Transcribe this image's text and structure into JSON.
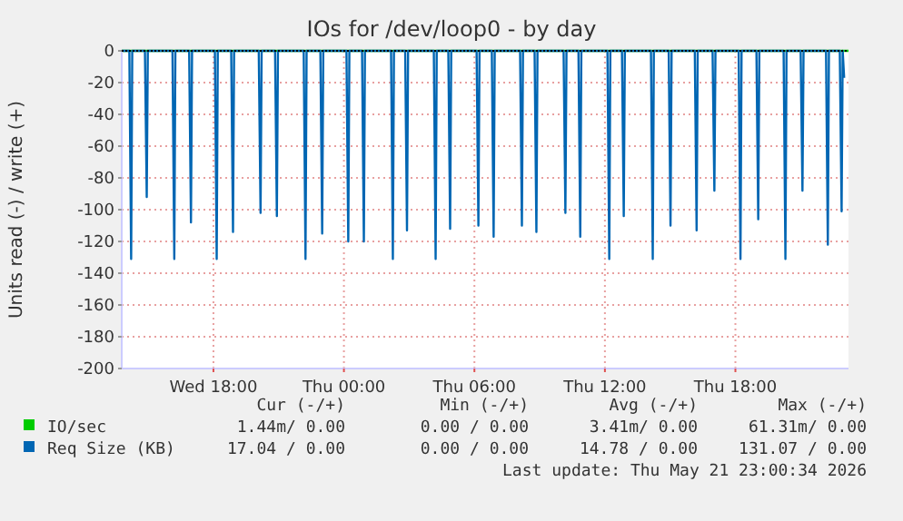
{
  "chart_data": {
    "type": "line",
    "title": "IOs for /dev/loop0 - by day",
    "ylabel": "Units read (-) / write (+)",
    "xlim": [
      "2026-05-20T13:47",
      "2026-05-21T23:12"
    ],
    "xticks": [
      {
        "value": "2026-05-20T18:00",
        "label": "Wed 18:00"
      },
      {
        "value": "2026-05-21T00:00",
        "label": "Thu 00:00"
      },
      {
        "value": "2026-05-21T06:00",
        "label": "Thu 06:00"
      },
      {
        "value": "2026-05-21T12:00",
        "label": "Thu 12:00"
      },
      {
        "value": "2026-05-21T18:00",
        "label": "Thu 18:00"
      }
    ],
    "ylim": [
      -200,
      0
    ],
    "yticks": [
      -200,
      -180,
      -160,
      -140,
      -120,
      -100,
      -80,
      -60,
      -40,
      -20,
      0
    ],
    "grid": true,
    "legend": "bottom left",
    "marker": "none",
    "line_style": "solid",
    "series": [
      {
        "name": "IO/sec",
        "color": "#00cc00",
        "x": [
          "2026-05-20T13:47",
          "2026-05-21T23:12"
        ],
        "values": [
          0,
          0
        ]
      },
      {
        "name": "Req Size (KB)",
        "color": "#0066b3",
        "x": [
          "2026-05-20T13:47",
          "2026-05-20T14:08",
          "2026-05-20T14:13",
          "2026-05-20T14:16",
          "2026-05-20T14:51",
          "2026-05-20T14:56",
          "2026-05-20T14:59",
          "2026-05-20T16:07",
          "2026-05-20T16:12",
          "2026-05-20T16:15",
          "2026-05-20T16:53",
          "2026-05-20T16:58",
          "2026-05-20T17:01",
          "2026-05-20T18:04",
          "2026-05-20T18:09",
          "2026-05-20T18:12",
          "2026-05-20T18:49",
          "2026-05-20T18:54",
          "2026-05-20T18:57",
          "2026-05-20T20:05",
          "2026-05-20T20:10",
          "2026-05-20T20:13",
          "2026-05-20T20:50",
          "2026-05-20T20:55",
          "2026-05-20T20:58",
          "2026-05-20T22:09",
          "2026-05-20T22:14",
          "2026-05-20T22:17",
          "2026-05-20T22:55",
          "2026-05-20T23:00",
          "2026-05-20T23:03",
          "2026-05-21T00:07",
          "2026-05-21T00:12",
          "2026-05-21T00:15",
          "2026-05-21T00:50",
          "2026-05-21T00:55",
          "2026-05-21T00:58",
          "2026-05-21T02:10",
          "2026-05-21T02:15",
          "2026-05-21T02:18",
          "2026-05-21T02:49",
          "2026-05-21T02:54",
          "2026-05-21T02:57",
          "2026-05-21T04:08",
          "2026-05-21T04:13",
          "2026-05-21T04:16",
          "2026-05-21T04:48",
          "2026-05-21T04:53",
          "2026-05-21T04:56",
          "2026-05-21T06:06",
          "2026-05-21T06:11",
          "2026-05-21T06:14",
          "2026-05-21T06:48",
          "2026-05-21T06:53",
          "2026-05-21T06:56",
          "2026-05-21T08:06",
          "2026-05-21T08:11",
          "2026-05-21T08:14",
          "2026-05-21T08:46",
          "2026-05-21T08:51",
          "2026-05-21T08:54",
          "2026-05-21T10:06",
          "2026-05-21T10:11",
          "2026-05-21T10:14",
          "2026-05-21T10:47",
          "2026-05-21T10:52",
          "2026-05-21T10:55",
          "2026-05-21T12:07",
          "2026-05-21T12:12",
          "2026-05-21T12:15",
          "2026-05-21T12:47",
          "2026-05-21T12:52",
          "2026-05-21T12:55",
          "2026-05-21T14:07",
          "2026-05-21T14:12",
          "2026-05-21T14:15",
          "2026-05-21T14:56",
          "2026-05-21T15:01",
          "2026-05-21T15:04",
          "2026-05-21T16:08",
          "2026-05-21T16:13",
          "2026-05-21T16:16",
          "2026-05-21T16:57",
          "2026-05-21T17:02",
          "2026-05-21T17:05",
          "2026-05-21T18:09",
          "2026-05-21T18:14",
          "2026-05-21T18:17",
          "2026-05-21T18:58",
          "2026-05-21T19:03",
          "2026-05-21T19:06",
          "2026-05-21T20:13",
          "2026-05-21T20:18",
          "2026-05-21T20:21",
          "2026-05-21T21:00",
          "2026-05-21T21:05",
          "2026-05-21T21:08",
          "2026-05-21T22:10",
          "2026-05-21T22:15",
          "2026-05-21T22:18",
          "2026-05-21T22:48",
          "2026-05-21T22:53",
          "2026-05-21T22:56",
          "2026-05-21T23:00"
        ],
        "values": [
          0,
          0,
          -131,
          0,
          0,
          -92,
          0,
          0,
          -131,
          0,
          0,
          -108,
          0,
          0,
          -131,
          0,
          0,
          -114,
          0,
          0,
          -102,
          0,
          0,
          -104,
          0,
          0,
          -131,
          0,
          0,
          -115,
          0,
          0,
          -120,
          0,
          0,
          -120,
          0,
          0,
          -131,
          0,
          0,
          -113,
          0,
          0,
          -131,
          0,
          0,
          -112,
          0,
          0,
          -110,
          0,
          0,
          -117,
          0,
          0,
          -110,
          0,
          0,
          -114,
          0,
          0,
          -102,
          0,
          0,
          -117,
          0,
          0,
          -131,
          0,
          0,
          -104,
          0,
          0,
          -131,
          0,
          0,
          -110,
          0,
          0,
          -113,
          0,
          0,
          -88,
          0,
          0,
          -131,
          0,
          0,
          -106,
          0,
          0,
          -131,
          0,
          0,
          -88,
          0,
          0,
          -122,
          0,
          0,
          -101,
          0,
          -17
        ]
      }
    ],
    "annotations": [
      "Cur (-/+)",
      "Min (-/+)",
      "Avg (-/+)",
      "Max (-/+)",
      "1.44m/ 0.00",
      "0.00 / 0.00",
      "3.41m/ 0.00",
      "61.31m/ 0.00",
      "17.04 / 0.00",
      "0.00 / 0.00",
      "14.78 / 0.00",
      "131.07 / 0.00",
      "Last update: Thu May 21 23:00:34 2026"
    ]
  }
}
